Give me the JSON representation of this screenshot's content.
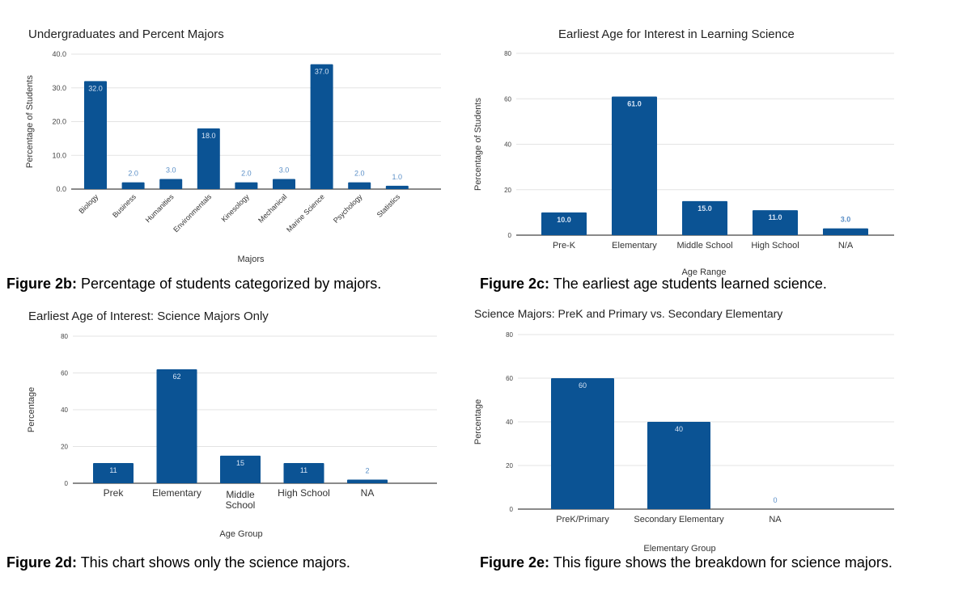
{
  "colors": {
    "bar": "#0b5394",
    "label_inside": "#d6e4f5",
    "label_outside": "#5b8fc7",
    "grid": "#e3e3e3",
    "axis": "#444444"
  },
  "captions": [
    {
      "figure": "Figure 2b:",
      "text": " Percentage of students categorized by majors."
    },
    {
      "figure": "Figure 2c:",
      "text": " The earliest age students learned science."
    },
    {
      "figure": "Figure 2d:",
      "text": " This chart shows only the science majors."
    },
    {
      "figure": "Figure 2e:",
      "text": " This figure shows the breakdown for science majors."
    }
  ],
  "chart_data": [
    {
      "type": "bar",
      "title": "Undergraduates and Percent Majors",
      "xlabel": "Majors",
      "ylabel": "Percentage of Students",
      "ylim": [
        0,
        40
      ],
      "yticks": [
        "0.0",
        "10.0",
        "20.0",
        "30.0",
        "40.0"
      ],
      "grid": true,
      "categories": [
        "Biology",
        "Business",
        "Humanities",
        "Environmentals",
        "Kinesology",
        "Mechanical",
        "Marine Science",
        "Psychology",
        "Statistics"
      ],
      "values": [
        32,
        2,
        3,
        18,
        2,
        3,
        37,
        2,
        1
      ],
      "data_labels": [
        "32.0",
        "2.0",
        "3.0",
        "18.0",
        "2.0",
        "3.0",
        "37.0",
        "2.0",
        "1.0"
      ]
    },
    {
      "type": "bar",
      "title": "Earliest Age for Interest in Learning Science",
      "xlabel": "Age Range",
      "ylabel": "Percentage of Students",
      "ylim": [
        0,
        80
      ],
      "yticks": [
        "0",
        "20",
        "40",
        "60",
        "80"
      ],
      "grid": true,
      "categories": [
        "Pre-K",
        "Elementary",
        "Middle School",
        "High School",
        "N/A"
      ],
      "values": [
        10,
        61,
        15,
        11,
        3
      ],
      "data_labels": [
        "10.0",
        "61.0",
        "15.0",
        "11.0",
        "3.0"
      ]
    },
    {
      "type": "bar",
      "title": "Earliest Age of Interest: Science Majors Only",
      "xlabel": "Age Group",
      "ylabel": "Percentage",
      "ylim": [
        0,
        80
      ],
      "yticks": [
        "0",
        "20",
        "40",
        "60",
        "80"
      ],
      "grid": true,
      "categories": [
        "Prek",
        "Elementary",
        "Middle School",
        "High School",
        "NA"
      ],
      "values": [
        11,
        62,
        15,
        11,
        2
      ],
      "data_labels": [
        "11",
        "62",
        "15",
        "11",
        "2"
      ]
    },
    {
      "type": "bar",
      "title": "Science Majors: PreK and Primary vs. Secondary Elementary",
      "xlabel": "Elementary Group",
      "ylabel": "Percentage",
      "ylim": [
        0,
        80
      ],
      "yticks": [
        "0",
        "20",
        "40",
        "60",
        "80"
      ],
      "grid": true,
      "categories": [
        "PreK/Primary",
        "Secondary Elementary",
        "NA"
      ],
      "values": [
        60,
        40,
        0
      ],
      "data_labels": [
        "60",
        "40",
        "0"
      ]
    }
  ]
}
